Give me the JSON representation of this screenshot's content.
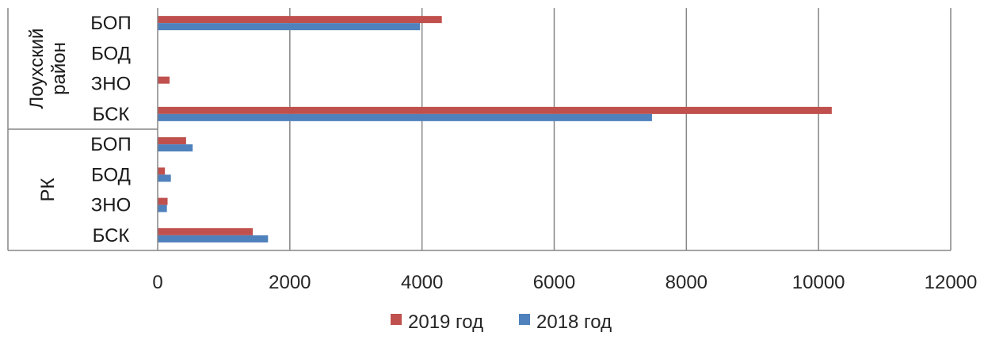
{
  "chart_data": {
    "type": "bar",
    "orientation": "horizontal",
    "groups": [
      {
        "label": [
          "Лоухский",
          "район"
        ],
        "categories": [
          "БОП",
          "БОД",
          "ЗНО",
          "БСК"
        ]
      },
      {
        "label": [
          "РК"
        ],
        "categories": [
          "БОП",
          "БОД",
          "ЗНО",
          "БСК"
        ]
      }
    ],
    "series": [
      {
        "name": "2019 год",
        "color": "#c0504d",
        "values": [
          4300,
          0,
          180,
          10200,
          430,
          110,
          150,
          1440
        ]
      },
      {
        "name": "2018 год",
        "color": "#4f81bd",
        "values": [
          3970,
          0,
          0,
          7480,
          530,
          200,
          140,
          1670
        ]
      }
    ],
    "xlim": [
      0,
      12000
    ],
    "xticks": [
      0,
      2000,
      4000,
      6000,
      8000,
      10000,
      12000
    ],
    "grid": "vertical",
    "legend": "bottom"
  }
}
